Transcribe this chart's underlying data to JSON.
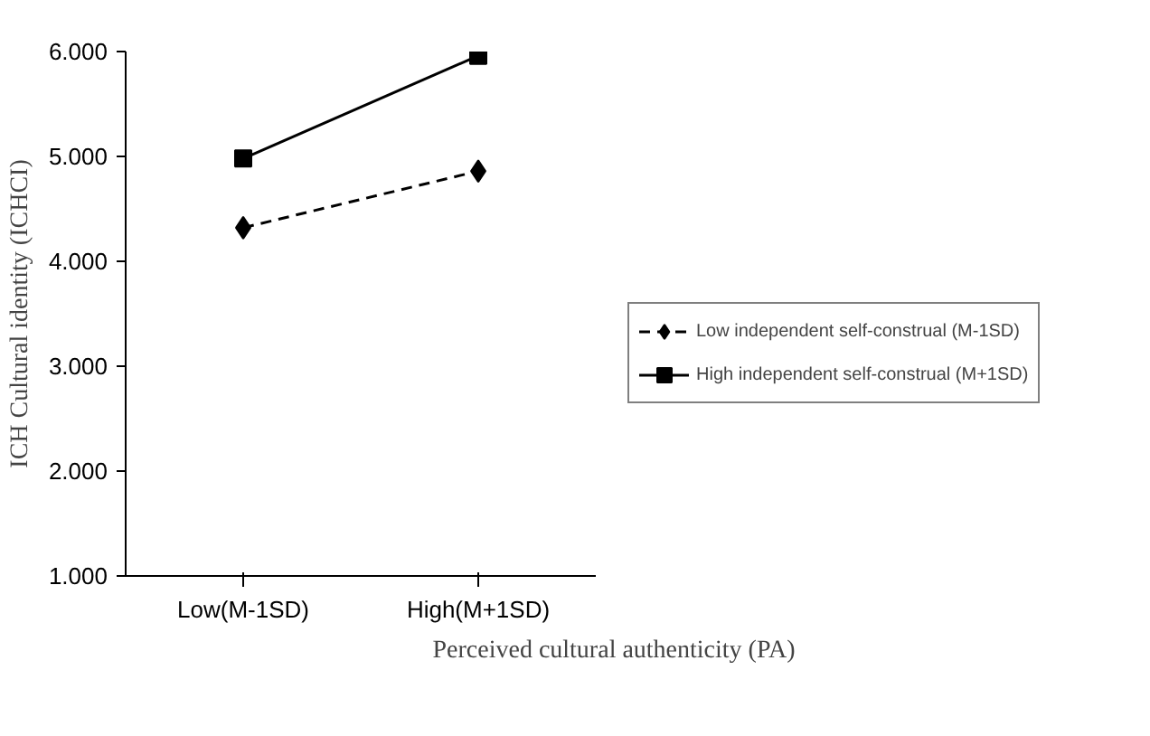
{
  "chart_data": {
    "type": "line",
    "xlabel": "Perceived cultural authenticity (PA)",
    "ylabel": "ICH Cultural identity (ICHCI)",
    "categories": [
      "Low(M-1SD)",
      "High(M+1SD)"
    ],
    "series": [
      {
        "name": "Low independent self-construal (M-1SD)",
        "color": "#000000",
        "values": [
          4.32,
          4.86
        ],
        "marker": "diamond",
        "line_style": "dashed"
      },
      {
        "name": "High independent self-construal (M+1SD)",
        "color": "#000000",
        "values": [
          4.98,
          5.96
        ],
        "marker": "square",
        "line_style": "solid"
      }
    ],
    "ylim": [
      1,
      6
    ],
    "yticks": [
      {
        "value": 1,
        "label": "1.000"
      },
      {
        "value": 2,
        "label": "2.000"
      },
      {
        "value": 3,
        "label": "3.000"
      },
      {
        "value": 4,
        "label": "4.000"
      },
      {
        "value": 5,
        "label": "5.000"
      },
      {
        "value": 6,
        "label": "6.000"
      }
    ],
    "grid": false,
    "legend": "right"
  }
}
